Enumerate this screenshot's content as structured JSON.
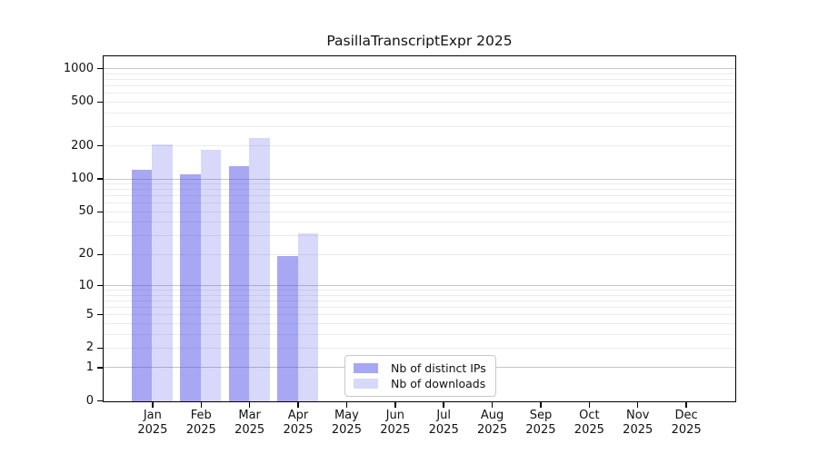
{
  "chart_data": {
    "type": "bar",
    "title": "PasillaTranscriptExpr 2025",
    "categories": [
      {
        "month": "Jan",
        "year": "2025"
      },
      {
        "month": "Feb",
        "year": "2025"
      },
      {
        "month": "Mar",
        "year": "2025"
      },
      {
        "month": "Apr",
        "year": "2025"
      },
      {
        "month": "May",
        "year": "2025"
      },
      {
        "month": "Jun",
        "year": "2025"
      },
      {
        "month": "Jul",
        "year": "2025"
      },
      {
        "month": "Aug",
        "year": "2025"
      },
      {
        "month": "Sep",
        "year": "2025"
      },
      {
        "month": "Oct",
        "year": "2025"
      },
      {
        "month": "Nov",
        "year": "2025"
      },
      {
        "month": "Dec",
        "year": "2025"
      }
    ],
    "series": [
      {
        "name": "Nb of distinct IPs",
        "color": "rgba(60,60,230,0.45)",
        "color_flat": "#a8a8f5",
        "values": [
          120,
          110,
          130,
          19,
          0,
          0,
          0,
          0,
          0,
          0,
          0,
          0
        ]
      },
      {
        "name": "Nb of downloads",
        "color": "rgba(60,60,230,0.2)",
        "color_flat": "#d9d9f8",
        "values": [
          205,
          183,
          232,
          31,
          0,
          0,
          0,
          0,
          0,
          0,
          0,
          0
        ]
      }
    ],
    "yscale": "log10(1+x)",
    "ylim": [
      0,
      1282
    ],
    "yticks": [
      0,
      1,
      2,
      5,
      10,
      20,
      50,
      100,
      200,
      500,
      1000
    ],
    "grid": {
      "major_values": [
        1,
        10,
        100,
        1000
      ],
      "minor_values": [
        2,
        3,
        4,
        5,
        6,
        7,
        8,
        9,
        20,
        30,
        40,
        50,
        60,
        70,
        80,
        90,
        200,
        300,
        400,
        500,
        600,
        700,
        800,
        900
      ],
      "major_color": "#c6c6c6",
      "minor_color": "#ececec"
    },
    "legend_position": "inside-bottom-center"
  }
}
